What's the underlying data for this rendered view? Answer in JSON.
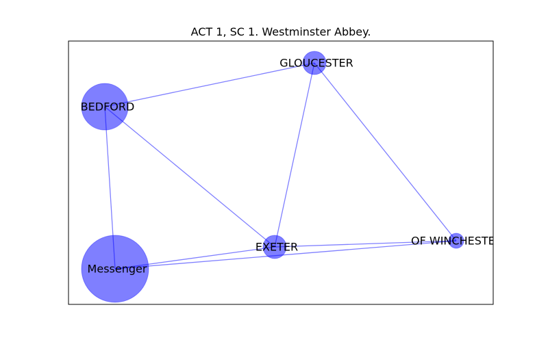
{
  "title": "ACT 1, SC 1. Westminster Abbey.",
  "colors": {
    "node": "#0000ff",
    "edge": "#0000ff",
    "text": "#000000",
    "frame": "#000000"
  },
  "nodes": [
    {
      "id": "gloucester",
      "label": "GLOUCESTER"
    },
    {
      "id": "bedford",
      "label": "BEDFORD"
    },
    {
      "id": "exeter",
      "label": "EXETER"
    },
    {
      "id": "winchester",
      "label": "OF WINCHESTER"
    },
    {
      "id": "messenger",
      "label": "Messenger"
    }
  ],
  "edges": [
    {
      "source": "bedford",
      "target": "gloucester"
    },
    {
      "source": "gloucester",
      "target": "exeter"
    },
    {
      "source": "gloucester",
      "target": "winchester"
    },
    {
      "source": "bedford",
      "target": "exeter"
    },
    {
      "source": "bedford",
      "target": "messenger"
    },
    {
      "source": "messenger",
      "target": "exeter"
    },
    {
      "source": "messenger",
      "target": "winchester"
    },
    {
      "source": "exeter",
      "target": "winchester"
    }
  ]
}
